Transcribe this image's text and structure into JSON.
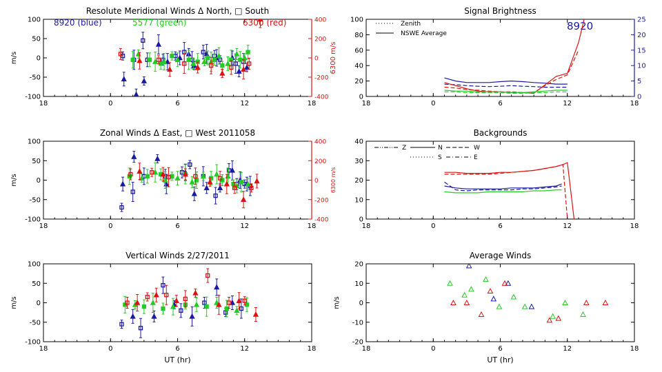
{
  "chart_data": [
    {
      "id": "meridional",
      "type": "scatter",
      "title": "Resolute Meridional Winds Δ North, □ South",
      "xlabel": "",
      "ylabel": "m/s",
      "y2label": "6300 m/s",
      "xlim": [
        18,
        42
      ],
      "ylim": [
        -100,
        100
      ],
      "y2lim": [
        -400,
        400
      ],
      "xticks": [
        18,
        24,
        30,
        36,
        42
      ],
      "xtick_labels": [
        "18",
        "0",
        "6",
        "12",
        "18"
      ],
      "yticks": [
        -100,
        -50,
        0,
        50,
        100
      ],
      "y2ticks": [
        -400,
        -200,
        0,
        200,
        400
      ],
      "annotations": [
        {
          "text": "8920  (blue)",
          "color": "#1a1aa0"
        },
        {
          "text": "5577  (green)",
          "color": "#22cc22"
        },
        {
          "text": "6300  (red)",
          "color": "#dd1111"
        }
      ],
      "series": [
        {
          "color": "#1a1aa0",
          "axis": "y",
          "x": [
            25.1,
            25.2,
            26.1,
            26.3,
            26.9,
            27.0,
            27.3,
            28.3,
            28.7,
            29.1,
            29.8,
            30.2,
            30.6,
            31.0,
            31.3,
            31.5,
            32.3,
            32.6,
            33.3,
            33.5,
            33.8,
            34.9,
            35.2,
            35.5,
            35.9,
            36.2
          ],
          "y": [
            5,
            -55,
            -5,
            -95,
            45,
            -60,
            -5,
            35,
            -5,
            -10,
            5,
            0,
            15,
            10,
            -5,
            -20,
            15,
            10,
            5,
            0,
            -5,
            0,
            -15,
            -35,
            -10,
            -25
          ]
        },
        {
          "color": "#22cc22",
          "axis": "y",
          "x": [
            26.0,
            26.5,
            27.5,
            28.0,
            28.5,
            28.8,
            29.5,
            30.0,
            31.0,
            31.4,
            31.8,
            32.4,
            32.7,
            33.0,
            33.3,
            33.7,
            34.0,
            34.5,
            34.8,
            35.3,
            35.6,
            36.0,
            36.3
          ],
          "y": [
            -5,
            10,
            -5,
            -10,
            -15,
            -10,
            5,
            -5,
            -5,
            -15,
            -10,
            -10,
            0,
            -10,
            -5,
            5,
            -20,
            -15,
            -5,
            10,
            -5,
            0,
            15
          ]
        },
        {
          "color": "#dd1111",
          "axis": "y2",
          "x": [
            24.9,
            26.6,
            28.3,
            29.3,
            30.6,
            31.8,
            33.0,
            34.0,
            34.8,
            35.9,
            36.4,
            37.4
          ],
          "y2": [
            40,
            -30,
            -20,
            -120,
            -60,
            -100,
            -80,
            -160,
            -100,
            -120,
            -60,
            400
          ]
        }
      ]
    },
    {
      "id": "zonal",
      "type": "scatter",
      "title": "Zonal Winds Δ East, □ West 2011058",
      "xlabel": "",
      "ylabel": "m/s",
      "y2label": "6300 m/s",
      "xlim": [
        18,
        42
      ],
      "ylim": [
        -100,
        100
      ],
      "y2lim": [
        -400,
        400
      ],
      "xticks": [
        18,
        24,
        30,
        36,
        42
      ],
      "xtick_labels": [
        "18",
        "0",
        "6",
        "12",
        "18"
      ],
      "yticks": [
        -100,
        -50,
        0,
        50,
        100
      ],
      "y2ticks": [
        -400,
        -200,
        0,
        200,
        400
      ],
      "series": [
        {
          "color": "#1a1aa0",
          "axis": "y",
          "x": [
            25.0,
            25.1,
            26.0,
            26.1,
            27.0,
            28.2,
            28.9,
            29.0,
            30.4,
            30.7,
            31.1,
            31.5,
            32.3,
            32.6,
            33.4,
            33.8,
            34.6,
            34.9,
            35.3,
            35.6,
            36.0,
            36.2,
            36.5
          ],
          "y": [
            -70,
            -10,
            -30,
            60,
            10,
            55,
            10,
            -10,
            20,
            20,
            40,
            -35,
            10,
            -20,
            -40,
            -20,
            25,
            25,
            -10,
            0,
            -10,
            -10,
            -15
          ]
        },
        {
          "color": "#22cc22",
          "axis": "y",
          "x": [
            25.7,
            26.8,
            27.3,
            28.0,
            28.5,
            28.9,
            29.5,
            30.0,
            30.7,
            31.3,
            31.7,
            32.3,
            33.0,
            33.5,
            34.0,
            34.5,
            35.0,
            35.3,
            35.7,
            36.3
          ],
          "y": [
            10,
            5,
            10,
            20,
            15,
            0,
            10,
            5,
            15,
            -5,
            0,
            10,
            5,
            15,
            0,
            10,
            -10,
            -15,
            -5,
            -10
          ]
        },
        {
          "color": "#dd1111",
          "axis": "y2",
          "x": [
            25.8,
            26.6,
            27.7,
            28.7,
            29.2,
            30.7,
            31.6,
            32.9,
            33.8,
            34.4,
            35.1,
            35.9,
            36.6,
            37.1
          ],
          "y2": [
            60,
            90,
            80,
            60,
            30,
            60,
            40,
            -20,
            20,
            -40,
            -80,
            -200,
            -80,
            -10
          ]
        }
      ]
    },
    {
      "id": "vertical",
      "type": "scatter",
      "title": "Vertical Winds 2/27/2011",
      "xlabel": "UT (hr)",
      "ylabel": "m/s",
      "xlim": [
        18,
        42
      ],
      "ylim": [
        -100,
        100
      ],
      "xticks": [
        18,
        24,
        30,
        36,
        42
      ],
      "xtick_labels": [
        "18",
        "0",
        "6",
        "12",
        "18"
      ],
      "yticks": [
        -100,
        -50,
        0,
        50,
        100
      ],
      "series": [
        {
          "color": "#1a1aa0",
          "axis": "y",
          "x": [
            25.0,
            26.0,
            26.7,
            27.9,
            28.7,
            29.7,
            30.3,
            31.3,
            32.4,
            33.5,
            34.3,
            34.9,
            35.7
          ],
          "y": [
            -55,
            -35,
            -65,
            -35,
            45,
            -5,
            -20,
            -35,
            0,
            40,
            -25,
            0,
            -15
          ]
        },
        {
          "color": "#22cc22",
          "axis": "y",
          "x": [
            25.3,
            26.2,
            27.0,
            27.8,
            28.7,
            29.6,
            30.7,
            31.7,
            32.6,
            33.5,
            34.4,
            35.3,
            36.2
          ],
          "y": [
            -5,
            -5,
            -10,
            0,
            -15,
            -10,
            -5,
            -5,
            -10,
            0,
            -15,
            -20,
            -5
          ]
        },
        {
          "color": "#dd1111",
          "axis": "y",
          "x": [
            25.5,
            26.4,
            27.3,
            28.1,
            29.0,
            29.9,
            30.7,
            31.6,
            32.7,
            33.7,
            34.6,
            35.5,
            36.0,
            37.0
          ],
          "y": [
            0,
            0,
            15,
            20,
            20,
            5,
            10,
            25,
            70,
            -5,
            0,
            5,
            5,
            -30
          ]
        }
      ]
    },
    {
      "id": "signal",
      "type": "line",
      "title": "Signal Brightness",
      "xlim": [
        18,
        42
      ],
      "ylim": [
        0,
        100
      ],
      "y2lim": [
        0,
        25
      ],
      "xticks": [
        18,
        24,
        30,
        36,
        42
      ],
      "xtick_labels": [
        "18",
        "0",
        "6",
        "12",
        "18"
      ],
      "yticks": [
        0,
        20,
        40,
        60,
        80,
        100
      ],
      "y2ticks": [
        0,
        5,
        10,
        15,
        20,
        25
      ],
      "legend_position": "top-left",
      "legend": [
        {
          "label": "Zenith",
          "style": "dotted"
        },
        {
          "label": "NSWE Average",
          "style": "solid"
        }
      ],
      "annotations": [
        {
          "text": "8920",
          "color": "#1a1aa0"
        }
      ],
      "series": [
        {
          "color": "#1a1aa0",
          "axis": "y2",
          "x": [
            25,
            26,
            27,
            28,
            29,
            30,
            31,
            32,
            33,
            34,
            35,
            36
          ],
          "y2": [
            6,
            5,
            4.5,
            4.5,
            4.5,
            4.8,
            5,
            4.8,
            4.5,
            4.3,
            4,
            4
          ]
        },
        {
          "color": "#1a1aa0",
          "axis": "y2",
          "style": "dashed",
          "x": [
            25,
            26,
            27,
            28,
            29,
            30,
            31,
            32,
            33,
            34,
            35,
            36
          ],
          "y2": [
            4,
            3.8,
            3.5,
            3.3,
            3.2,
            3.3,
            3.5,
            3.3,
            3.2,
            3.0,
            3.0,
            3.0
          ]
        },
        {
          "color": "#dd1111",
          "axis": "y",
          "x": [
            25,
            26,
            27,
            28,
            29,
            30,
            31,
            32,
            33,
            34,
            35,
            36,
            37,
            37.5
          ],
          "y": [
            18,
            14,
            10,
            7,
            6,
            6,
            5,
            5,
            4,
            15,
            26,
            30,
            70,
            100
          ]
        },
        {
          "color": "#dd1111",
          "axis": "y",
          "style": "dashed",
          "x": [
            25,
            26,
            27,
            28,
            29,
            30,
            31,
            32,
            33,
            34,
            35,
            36,
            37
          ],
          "y": [
            12,
            11,
            9,
            8,
            7,
            6,
            6,
            5,
            5,
            14,
            22,
            28,
            60
          ]
        },
        {
          "color": "#22cc22",
          "axis": "y",
          "x": [
            25,
            26,
            27,
            28,
            29,
            30,
            31,
            32,
            33,
            34,
            35,
            36
          ],
          "y": [
            8,
            7,
            7,
            6,
            6,
            6,
            5,
            5,
            6,
            7,
            8,
            8
          ]
        },
        {
          "color": "#22cc22",
          "axis": "y",
          "style": "dashed",
          "x": [
            25,
            26,
            27,
            28,
            29,
            30,
            31,
            32,
            33,
            34,
            35,
            36
          ],
          "y": [
            6,
            6,
            5,
            5,
            5,
            5,
            4,
            4,
            5,
            5,
            6,
            6
          ]
        }
      ]
    },
    {
      "id": "backgrounds",
      "type": "line",
      "title": "Backgrounds",
      "xlim": [
        18,
        42
      ],
      "ylim": [
        0,
        40
      ],
      "xticks": [
        18,
        24,
        30,
        36,
        42
      ],
      "xtick_labels": [
        "18",
        "0",
        "6",
        "12",
        "18"
      ],
      "yticks": [
        0,
        10,
        20,
        30,
        40
      ],
      "legend_position": "top-left",
      "legend": [
        {
          "label": "Z",
          "style": "dashdotdot"
        },
        {
          "label": "N",
          "style": "solid"
        },
        {
          "label": "W",
          "style": "dashed"
        },
        {
          "label": "S",
          "style": "dotted"
        },
        {
          "label": "E",
          "style": "dashdot"
        }
      ],
      "series": [
        {
          "color": "#dd1111",
          "axis": "y",
          "x": [
            25,
            26,
            27,
            28,
            29,
            30,
            31,
            32,
            33,
            34,
            35,
            35.6,
            36,
            36.6
          ],
          "y": [
            24,
            24,
            23.5,
            23.5,
            23.5,
            24,
            24,
            24.5,
            25,
            26,
            27,
            28,
            29,
            0
          ]
        },
        {
          "color": "#dd1111",
          "axis": "y",
          "style": "dashed",
          "x": [
            25,
            26,
            27,
            28,
            29,
            30,
            31,
            32,
            33,
            34,
            35,
            35.6,
            36
          ],
          "y": [
            23,
            23,
            23,
            23,
            23,
            23.5,
            24,
            24.5,
            25,
            26,
            27,
            28,
            0
          ]
        },
        {
          "color": "#1a1aa0",
          "axis": "y",
          "x": [
            25,
            26,
            27,
            28,
            29,
            30,
            31,
            32,
            33,
            34,
            35,
            35.5
          ],
          "y": [
            17,
            16,
            15.5,
            15.5,
            15.5,
            15.5,
            16,
            16,
            16,
            16.5,
            17,
            18
          ]
        },
        {
          "color": "#1a1aa0",
          "axis": "y",
          "style": "dashed",
          "x": [
            25,
            26,
            27,
            28,
            29,
            30,
            31,
            32,
            33,
            34,
            35,
            35.5
          ],
          "y": [
            19,
            15,
            14.5,
            15,
            15,
            15,
            15,
            15.5,
            15.5,
            16,
            16.5,
            17
          ]
        },
        {
          "color": "#22cc22",
          "axis": "y",
          "x": [
            25,
            26,
            27,
            28,
            29,
            30,
            31,
            32,
            33,
            34,
            35,
            35.5
          ],
          "y": [
            14,
            13.5,
            13.5,
            13.5,
            14,
            14,
            14,
            14,
            14.5,
            14.5,
            15,
            15
          ]
        }
      ]
    },
    {
      "id": "average",
      "type": "scatter",
      "title": "Average Winds",
      "xlabel": "UT (hr)",
      "ylabel": "m/s",
      "xlim": [
        18,
        42
      ],
      "ylim": [
        -20,
        20
      ],
      "xticks": [
        18,
        24,
        30,
        36,
        42
      ],
      "xtick_labels": [
        "18",
        "0",
        "6",
        "12",
        "18"
      ],
      "yticks": [
        -20,
        -10,
        0,
        10,
        20
      ],
      "series": [
        {
          "color": "#1a1aa0",
          "axis": "y",
          "marker": "triangle",
          "x": [
            27.2,
            29.4,
            30.7,
            32.8
          ],
          "y": [
            19,
            2,
            10,
            -2
          ]
        },
        {
          "color": "#22cc22",
          "axis": "y",
          "marker": "triangle",
          "x": [
            25.5,
            26.8,
            27.4,
            28.7,
            29.9,
            31.2,
            32.2,
            34.7,
            35.8,
            37.4
          ],
          "y": [
            10,
            4,
            7,
            12,
            -2,
            3,
            -2,
            -7,
            0,
            -6
          ]
        },
        {
          "color": "#dd1111",
          "axis": "y",
          "marker": "triangle",
          "x": [
            25.8,
            27.0,
            28.3,
            29.1,
            30.4,
            34.4,
            35.2,
            37.7,
            39.4
          ],
          "y": [
            0,
            0,
            -6,
            6,
            10,
            -9,
            -8,
            0,
            0
          ]
        }
      ]
    }
  ]
}
